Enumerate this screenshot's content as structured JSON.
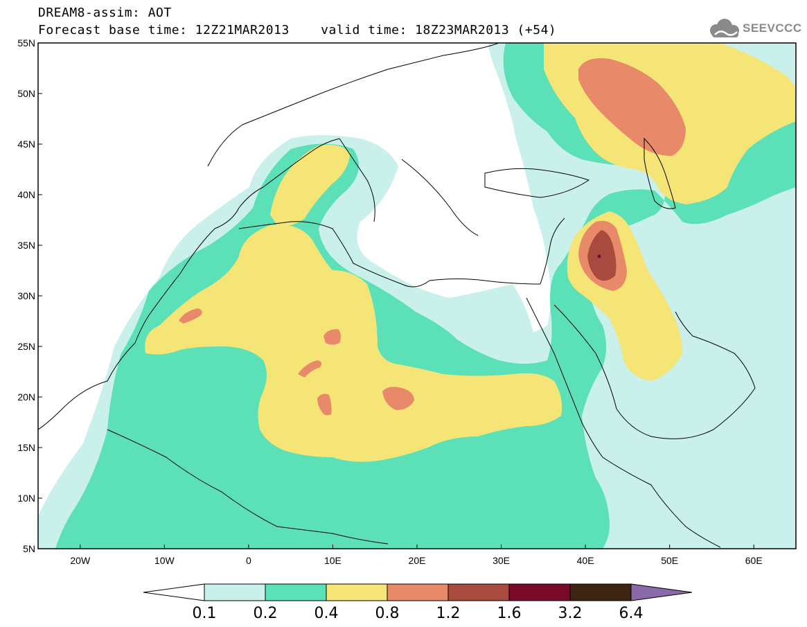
{
  "header": {
    "line1": "DREAM8-assim: AOT",
    "line2": "Forecast base time: 12Z21MAR2013    valid time: 18Z23MAR2013 (+54)"
  },
  "logo": {
    "text": "SEEVCCC",
    "icon": "cloud-icon",
    "color": "#8a8a8a"
  },
  "map": {
    "region": {
      "lon_min": -25,
      "lon_max": 65,
      "lat_min": 5,
      "lat_max": 55
    },
    "grid": false,
    "lat_ticks": [
      {
        "value": 55,
        "label": "55N"
      },
      {
        "value": 50,
        "label": "50N"
      },
      {
        "value": 45,
        "label": "45N"
      },
      {
        "value": 40,
        "label": "40N"
      },
      {
        "value": 35,
        "label": "35N"
      },
      {
        "value": 30,
        "label": "30N"
      },
      {
        "value": 25,
        "label": "25N"
      },
      {
        "value": 20,
        "label": "20N"
      },
      {
        "value": 15,
        "label": "15N"
      },
      {
        "value": 10,
        "label": "10N"
      },
      {
        "value": 5,
        "label": "5N"
      }
    ],
    "lon_ticks": [
      {
        "value": -20,
        "label": "20W"
      },
      {
        "value": -10,
        "label": "10W"
      },
      {
        "value": 0,
        "label": "0"
      },
      {
        "value": 10,
        "label": "10E"
      },
      {
        "value": 20,
        "label": "20E"
      },
      {
        "value": 30,
        "label": "30E"
      },
      {
        "value": 40,
        "label": "40E"
      },
      {
        "value": 50,
        "label": "50E"
      },
      {
        "value": 60,
        "label": "60E"
      }
    ]
  },
  "colorbar": {
    "labels": [
      "0.1",
      "0.2",
      "0.4",
      "0.8",
      "1.2",
      "1.6",
      "3.2",
      "6.4"
    ],
    "colors": [
      "#ffffff",
      "#c9f0ea",
      "#5be0b8",
      "#f5e476",
      "#e88a6a",
      "#a84a3e",
      "#7a0a2a",
      "#3d2410",
      "#8a6aa8"
    ]
  }
}
